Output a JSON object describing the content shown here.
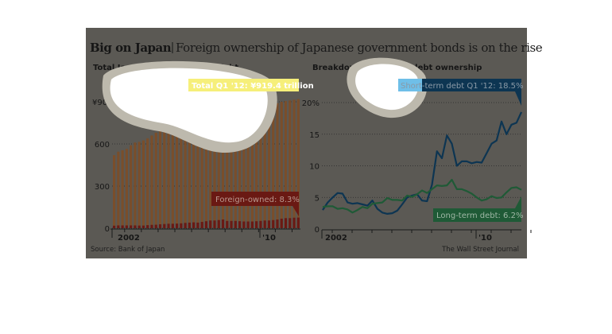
{
  "header": {
    "title": "Big on Japan",
    "subtitle": "Foreign ownership of Japanese government bonds is on the rise"
  },
  "source": "Source: Bank of Japan",
  "credit": "The Wall Street Journal",
  "colors": {
    "background": "#5b5954",
    "total": "#7a4e2b",
    "foreign": "#6a1913",
    "short_term": "#0d3552",
    "long_term": "#1f5a36"
  },
  "chart_data": [
    {
      "type": "bar",
      "title": "Total Japanese government debt",
      "ylabel": "¥ trillion",
      "ylim": [
        0,
        960
      ],
      "yticks": [
        0,
        300,
        600,
        900
      ],
      "ytick_labels": [
        "0",
        "300",
        "600",
        "¥900 trillion"
      ],
      "xtick_labels": [
        "2002",
        "'10"
      ],
      "x_start": "2001 Q1",
      "x_end": "2012 Q1",
      "series": [
        {
          "name": "Total",
          "values": [
            520,
            545,
            555,
            565,
            590,
            610,
            615,
            625,
            640,
            660,
            680,
            700,
            720,
            740,
            750,
            755,
            760,
            765,
            768,
            770,
            772,
            775,
            778,
            780,
            785,
            790,
            795,
            800,
            805,
            812,
            820,
            828,
            835,
            842,
            850,
            860,
            870,
            880,
            885,
            890,
            900,
            905,
            910,
            915,
            919.4
          ]
        },
        {
          "name": "Foreign-owned",
          "values": [
            18,
            20,
            20,
            20,
            20,
            20,
            19,
            19,
            22,
            24,
            25,
            28,
            30,
            32,
            32,
            33,
            35,
            38,
            40,
            42,
            40,
            45,
            50,
            55,
            55,
            58,
            62,
            52,
            52,
            52,
            50,
            48,
            48,
            48,
            50,
            52,
            55,
            55,
            58,
            62,
            68,
            72,
            72,
            75,
            76
          ]
        }
      ],
      "annotations": [
        {
          "label": "Total Q1 '12:",
          "value": "¥919.4 trillion"
        },
        {
          "label": "Foreign-owned:",
          "value": "8.3%"
        }
      ]
    },
    {
      "type": "line",
      "title": "Breakdown of foreign debt ownership",
      "ylabel": "%",
      "ylim": [
        0,
        21
      ],
      "yticks": [
        0,
        5,
        10,
        15,
        20
      ],
      "ytick_labels": [
        "0",
        "5",
        "10",
        "15",
        "20%"
      ],
      "xtick_labels": [
        "2002",
        "'10"
      ],
      "series": [
        {
          "name": "Short-term debt",
          "values": [
            3.0,
            4.2,
            5.0,
            5.7,
            5.6,
            4.2,
            4.0,
            4.1,
            3.9,
            3.7,
            4.5,
            3.2,
            2.6,
            2.4,
            2.5,
            2.9,
            3.9,
            5.0,
            5.3,
            5.5,
            4.5,
            4.4,
            7.0,
            12.3,
            11.2,
            14.8,
            13.5,
            10.0,
            10.7,
            10.7,
            10.4,
            10.6,
            10.5,
            12.0,
            13.5,
            14.0,
            17.0,
            15.0,
            16.5,
            16.8,
            18.5
          ]
        },
        {
          "name": "Long-term debt",
          "values": [
            3.5,
            3.6,
            3.6,
            3.2,
            3.3,
            3.1,
            2.6,
            3.0,
            3.5,
            3.3,
            4.0,
            4.1,
            4.2,
            4.9,
            4.6,
            4.6,
            4.5,
            5.3,
            5.1,
            5.5,
            6.1,
            5.7,
            6.3,
            6.9,
            6.8,
            6.9,
            7.8,
            6.3,
            6.3,
            6.0,
            5.6,
            5.0,
            4.5,
            4.7,
            5.2,
            4.9,
            5.0,
            5.8,
            6.5,
            6.6,
            6.2
          ]
        }
      ],
      "annotations": [
        {
          "label": "Short-term debt Q1 '12:",
          "value": "18.5%"
        },
        {
          "label": "Long-term debt:",
          "value": "6.2%"
        }
      ]
    }
  ]
}
